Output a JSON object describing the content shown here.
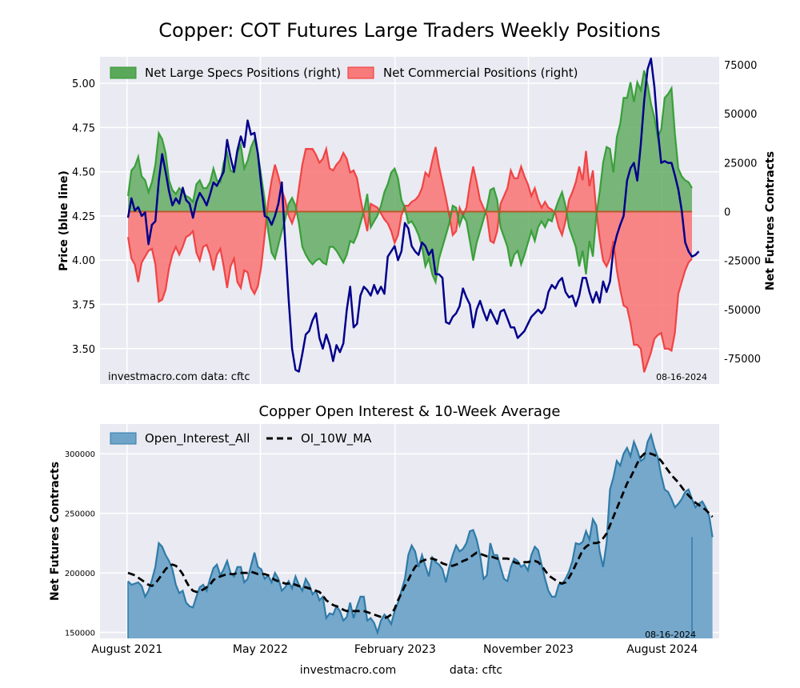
{
  "figure": {
    "title": "Copper: COT Futures Large Traders Weekly Positions",
    "footer_site": "investmacro.com",
    "footer_data": "data: cftc"
  },
  "colors": {
    "panel_bg": "#eaeaf2",
    "grid": "#ffffff",
    "price_line": "#00008b",
    "specs_fill": "#5aa85a",
    "specs_line": "#2e9a2e",
    "comm_fill": "#f87a7a",
    "comm_line": "#f03030",
    "oi_fill": "#6fa4c8",
    "oi_line": "#2f7ba8",
    "ma_line": "#000000"
  },
  "chart_data": [
    {
      "type": "line",
      "title": "Copper: COT Futures Large Traders Weekly Positions",
      "ylabel_left": "Price (blue line)",
      "ylabel_right": "Net Futures Contracts",
      "ylim_left": [
        3.3,
        5.15
      ],
      "ylim_right": [
        -88000,
        79000
      ],
      "yticks_left": [
        "3.50",
        "3.75",
        "4.00",
        "4.25",
        "4.50",
        "4.75",
        "5.00"
      ],
      "yticks_left_values": [
        3.5,
        3.75,
        4.0,
        4.25,
        4.5,
        4.75,
        5.0
      ],
      "yticks_right": [
        "-75000",
        "-50000",
        "-25000",
        "0",
        "25000",
        "50000",
        "75000"
      ],
      "yticks_right_values": [
        -75000,
        -50000,
        -25000,
        0,
        25000,
        50000,
        75000
      ],
      "legend_placement": "top-left",
      "grid": true,
      "x_start": "2021-08-03",
      "x_step_days": 7,
      "watermark_left": "investmacro.com   data: cftc",
      "watermark_right": "08-16-2024",
      "series": [
        {
          "name": "Net Large Specs Positions (right)",
          "kind": "area",
          "values": [
            8000,
            21000,
            23000,
            28000,
            18000,
            16000,
            10000,
            15000,
            24000,
            40000,
            37000,
            30000,
            16000,
            11000,
            9000,
            12000,
            10000,
            8000,
            7000,
            5000,
            14000,
            16000,
            12000,
            12000,
            15000,
            22000,
            16000,
            15000,
            25000,
            30000,
            21000,
            20000,
            30000,
            34000,
            22000,
            26000,
            33000,
            37000,
            30000,
            18000,
            6000,
            -10000,
            -21000,
            -24000,
            -17000,
            -10000,
            -4000,
            4000,
            7000,
            3000,
            -6000,
            -18000,
            -22000,
            -25000,
            -27000,
            -25000,
            -24000,
            -26000,
            -27000,
            -18000,
            -18000,
            -20000,
            -23000,
            -26000,
            -22000,
            -15000,
            -16000,
            -12000,
            -6000,
            0,
            9000,
            -8000,
            -5000,
            -2000,
            3000,
            10000,
            14000,
            20000,
            22000,
            17000,
            6000,
            2000,
            -6000,
            -5000,
            -8000,
            -12000,
            -18000,
            -28000,
            -24000,
            -32000,
            -36000,
            -24000,
            -18000,
            -12000,
            -6000,
            3000,
            2000,
            -7000,
            -2000,
            -5000,
            -15000,
            -25000,
            -16000,
            -10000,
            -4000,
            2000,
            11000,
            12000,
            6000,
            -8000,
            -13000,
            -18000,
            -28000,
            -22000,
            -20000,
            -27000,
            -22000,
            -16000,
            -10000,
            -15000,
            -8000,
            -5000,
            -8000,
            -4000,
            -5000,
            1000,
            6000,
            10000,
            3000,
            -8000,
            -13000,
            -18000,
            -28000,
            -20000,
            -32000,
            -15000,
            -23000,
            -2000,
            10000,
            25000,
            33000,
            32000,
            20000,
            38000,
            45000,
            58000,
            58000,
            66000,
            56000,
            66000,
            62000,
            72000,
            65000,
            55000,
            48000,
            38000,
            42000,
            58000,
            60000,
            63000,
            40000,
            22000,
            18000,
            16000,
            15000,
            12000
          ]
        },
        {
          "name": "Net Commercial Positions (right)",
          "kind": "area",
          "values": [
            -13000,
            -24000,
            -27000,
            -36000,
            -26000,
            -23000,
            -20000,
            -19000,
            -27000,
            -46000,
            -45000,
            -40000,
            -29000,
            -22000,
            -18000,
            -22000,
            -18000,
            -13000,
            -12000,
            -10000,
            -21000,
            -25000,
            -18000,
            -17000,
            -22000,
            -30000,
            -22000,
            -19000,
            -28000,
            -39000,
            -28000,
            -24000,
            -36000,
            -39000,
            -30000,
            -31000,
            -39000,
            -42000,
            -38000,
            -28000,
            -12000,
            5000,
            16000,
            24000,
            18000,
            11000,
            6000,
            -2000,
            -6000,
            -1000,
            12000,
            24000,
            32000,
            32000,
            32000,
            29000,
            25000,
            27000,
            32000,
            22000,
            21000,
            24000,
            26000,
            30000,
            27000,
            20000,
            21000,
            17000,
            7000,
            -2000,
            -10000,
            4000,
            3000,
            2000,
            -1000,
            -4000,
            -6000,
            -10000,
            -16000,
            -12000,
            -2000,
            3000,
            3000,
            5000,
            6000,
            8000,
            12000,
            20000,
            18000,
            26000,
            33000,
            23000,
            15000,
            7000,
            -2000,
            -12000,
            -10000,
            2000,
            -2000,
            2000,
            14000,
            23000,
            15000,
            6000,
            2000,
            -2000,
            -15000,
            -16000,
            -10000,
            4000,
            8000,
            12000,
            21000,
            17000,
            17000,
            23000,
            18000,
            14000,
            8000,
            12000,
            6000,
            2000,
            5000,
            2000,
            1000,
            -1000,
            -8000,
            -12000,
            -5000,
            6000,
            10000,
            15000,
            23000,
            16000,
            31000,
            13000,
            21000,
            0,
            -14000,
            -25000,
            -28000,
            -24000,
            -15000,
            -30000,
            -40000,
            -48000,
            -49000,
            -57000,
            -68000,
            -68000,
            -70000,
            -82000,
            -77000,
            -72000,
            -65000,
            -63000,
            -62000,
            -70000,
            -70000,
            -71000,
            -62000,
            -42000,
            -36000,
            -30000,
            -26000,
            -24000
          ]
        },
        {
          "name": "Price",
          "kind": "line",
          "axis": "left",
          "values": [
            4.24,
            4.35,
            4.28,
            4.3,
            4.25,
            4.27,
            4.09,
            4.2,
            4.22,
            4.45,
            4.6,
            4.5,
            4.39,
            4.31,
            4.35,
            4.32,
            4.41,
            4.34,
            4.32,
            4.24,
            4.33,
            4.38,
            4.35,
            4.31,
            4.37,
            4.44,
            4.42,
            4.46,
            4.5,
            4.68,
            4.58,
            4.5,
            4.62,
            4.7,
            4.64,
            4.79,
            4.71,
            4.72,
            4.6,
            4.42,
            4.25,
            4.24,
            4.2,
            4.25,
            4.32,
            4.44,
            4.1,
            3.78,
            3.5,
            3.38,
            3.37,
            3.47,
            3.58,
            3.6,
            3.66,
            3.7,
            3.56,
            3.5,
            3.58,
            3.52,
            3.43,
            3.52,
            3.48,
            3.53,
            3.72,
            3.85,
            3.62,
            3.64,
            3.8,
            3.85,
            3.83,
            3.8,
            3.86,
            3.81,
            3.85,
            3.81,
            4.02,
            4.05,
            4.08,
            4.0,
            4.05,
            4.21,
            4.18,
            4.08,
            4.05,
            4.03,
            4.1,
            4.08,
            4.03,
            4.06,
            3.92,
            3.92,
            3.9,
            3.65,
            3.64,
            3.68,
            3.7,
            3.74,
            3.84,
            3.79,
            3.75,
            3.62,
            3.72,
            3.77,
            3.71,
            3.66,
            3.72,
            3.68,
            3.64,
            3.71,
            3.72,
            3.67,
            3.62,
            3.62,
            3.56,
            3.58,
            3.6,
            3.64,
            3.68,
            3.7,
            3.72,
            3.7,
            3.73,
            3.82,
            3.86,
            3.84,
            3.88,
            3.9,
            3.82,
            3.79,
            3.8,
            3.74,
            3.8,
            3.9,
            3.9,
            3.82,
            3.76,
            3.82,
            3.76,
            3.88,
            3.82,
            3.88,
            4.06,
            4.14,
            4.2,
            4.25,
            4.45,
            4.52,
            4.55,
            4.45,
            4.65,
            4.9,
            5.08,
            5.14,
            4.98,
            4.73,
            4.55,
            4.56,
            4.55,
            4.55,
            4.48,
            4.4,
            4.28,
            4.1,
            4.05,
            4.02,
            4.03,
            4.05
          ]
        }
      ]
    },
    {
      "type": "area",
      "title": "Copper Open Interest & 10-Week Average",
      "ylabel": "Net Futures Contracts",
      "ylim": [
        145000,
        325000
      ],
      "yticks": [
        "150000",
        "200000",
        "250000",
        "300000"
      ],
      "yticks_values": [
        150000,
        200000,
        250000,
        300000
      ],
      "xticks": [
        "August 2021",
        "May 2022",
        "February 2023",
        "November 2023",
        "August 2024"
      ],
      "xticks_values": [
        "2021-08-01",
        "2022-05-01",
        "2023-02-01",
        "2023-11-01",
        "2024-08-01"
      ],
      "legend_placement": "top-left",
      "grid": true,
      "x_start": "2021-08-03",
      "x_step_days": 7,
      "watermark_right": "08-16-2024",
      "series": [
        {
          "name": "Open_Interest_All",
          "kind": "area",
          "values": [
            193000,
            190000,
            191000,
            192000,
            189000,
            180000,
            185000,
            194000,
            205000,
            225000,
            222000,
            215000,
            210000,
            203000,
            190000,
            183000,
            185000,
            175000,
            172000,
            171000,
            180000,
            188000,
            190000,
            185000,
            195000,
            204000,
            207000,
            198000,
            203000,
            210000,
            200000,
            197000,
            205000,
            205000,
            192000,
            195000,
            206000,
            217000,
            205000,
            203000,
            195000,
            198000,
            192000,
            200000,
            195000,
            185000,
            188000,
            193000,
            187000,
            197000,
            190000,
            185000,
            195000,
            190000,
            182000,
            185000,
            177000,
            180000,
            162000,
            166000,
            165000,
            172000,
            168000,
            160000,
            163000,
            175000,
            162000,
            172000,
            180000,
            180000,
            160000,
            162000,
            158000,
            150000,
            160000,
            165000,
            162000,
            157000,
            168000,
            175000,
            185000,
            195000,
            215000,
            223000,
            218000,
            205000,
            215000,
            206000,
            197000,
            213000,
            209000,
            207000,
            203000,
            192000,
            205000,
            215000,
            223000,
            218000,
            220000,
            225000,
            235000,
            236000,
            228000,
            215000,
            195000,
            198000,
            225000,
            215000,
            215000,
            205000,
            195000,
            193000,
            205000,
            212000,
            210000,
            205000,
            207000,
            202000,
            215000,
            222000,
            219000,
            207000,
            195000,
            185000,
            180000,
            180000,
            190000,
            191000,
            195000,
            201000,
            210000,
            225000,
            224000,
            226000,
            235000,
            228000,
            245000,
            240000,
            218000,
            205000,
            225000,
            270000,
            280000,
            294000,
            290000,
            300000,
            305000,
            298000,
            310000,
            303000,
            294000,
            296000,
            310000,
            316000,
            305000,
            297000,
            282000,
            270000,
            268000,
            262000,
            255000,
            258000,
            262000,
            268000,
            270000,
            262000,
            255000,
            258000,
            260000,
            255000,
            248000,
            230000
          ]
        },
        {
          "name": "OI_10W_MA",
          "kind": "line",
          "values": [
            200000,
            199000,
            198000,
            196000,
            194000,
            192000,
            190000,
            189000,
            191000,
            195000,
            199000,
            203000,
            206000,
            207000,
            206000,
            203000,
            199000,
            193000,
            188000,
            185000,
            184000,
            185000,
            186000,
            188000,
            190000,
            194000,
            196000,
            197000,
            198000,
            199000,
            199000,
            199000,
            200000,
            200000,
            200000,
            200000,
            201000,
            200000,
            199000,
            199000,
            199000,
            198000,
            196000,
            194000,
            193000,
            192000,
            191000,
            191000,
            191000,
            190000,
            189000,
            188000,
            188000,
            187000,
            186000,
            185000,
            184000,
            181000,
            177000,
            175000,
            173000,
            172000,
            171000,
            169000,
            168000,
            168000,
            168000,
            168000,
            168000,
            168000,
            167000,
            166000,
            165000,
            164000,
            163000,
            162000,
            163000,
            165000,
            170000,
            177000,
            183000,
            189000,
            194000,
            200000,
            205000,
            208000,
            210000,
            211000,
            212000,
            212000,
            211000,
            210000,
            208000,
            207000,
            206000,
            206000,
            207000,
            208000,
            210000,
            211000,
            213000,
            215000,
            217000,
            216000,
            215000,
            214000,
            214000,
            213000,
            212000,
            212000,
            212000,
            212000,
            211000,
            209000,
            208000,
            208000,
            209000,
            209000,
            210000,
            210000,
            209000,
            206000,
            202000,
            198000,
            196000,
            194000,
            192000,
            191000,
            192000,
            196000,
            201000,
            207000,
            213000,
            219000,
            222000,
            224000,
            225000,
            225000,
            226000,
            229000,
            233000,
            240000,
            247000,
            254000,
            261000,
            268000,
            275000,
            280000,
            286000,
            292000,
            297000,
            300000,
            301000,
            300000,
            299000,
            297000,
            294000,
            290000,
            286000,
            282000,
            279000,
            276000,
            272000,
            268000,
            265000,
            262000,
            259000,
            257000,
            255000,
            253000,
            250000,
            247000
          ]
        }
      ]
    }
  ]
}
